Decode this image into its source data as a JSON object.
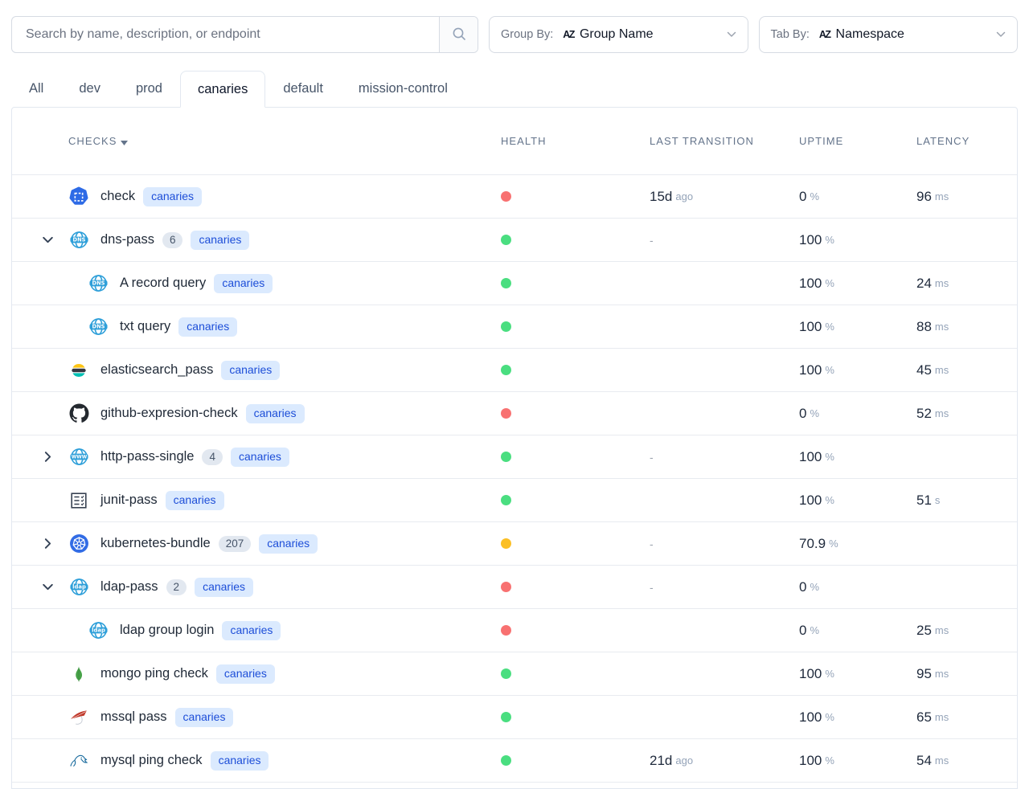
{
  "toolbar": {
    "search": {
      "placeholder": "Search by name, description, or endpoint"
    },
    "group_by": {
      "label": "Group By:",
      "value": "Group Name"
    },
    "tab_by": {
      "label": "Tab By:",
      "value": "Namespace"
    }
  },
  "tabs": {
    "items": [
      "All",
      "dev",
      "prod",
      "canaries",
      "default",
      "mission-control"
    ],
    "active": "canaries"
  },
  "table": {
    "columns": [
      "CHECKS",
      "HEALTH",
      "LAST TRANSITION",
      "UPTIME",
      "LATENCY"
    ],
    "rows": [
      {
        "name": "check",
        "icon": "check",
        "level": 0,
        "expand": null,
        "count": null,
        "namespace": "canaries",
        "health": "unhealthy",
        "last_transition": {
          "value": "15d",
          "unit": "ago"
        },
        "uptime": {
          "value": "0",
          "unit": "%"
        },
        "latency": {
          "value": "96",
          "unit": "ms"
        }
      },
      {
        "name": "dns-pass",
        "icon": "dns",
        "level": 0,
        "expand": "expanded",
        "count": "6",
        "namespace": "canaries",
        "health": "healthy",
        "last_transition": {
          "value": "-"
        },
        "uptime": {
          "value": "100",
          "unit": "%"
        },
        "latency": null
      },
      {
        "name": "A record query",
        "icon": "dns",
        "level": 1,
        "expand": null,
        "count": null,
        "namespace": "canaries",
        "health": "healthy",
        "last_transition": null,
        "uptime": {
          "value": "100",
          "unit": "%"
        },
        "latency": {
          "value": "24",
          "unit": "ms"
        }
      },
      {
        "name": "txt query",
        "icon": "dns",
        "level": 1,
        "expand": null,
        "count": null,
        "namespace": "canaries",
        "health": "healthy",
        "last_transition": null,
        "uptime": {
          "value": "100",
          "unit": "%"
        },
        "latency": {
          "value": "88",
          "unit": "ms"
        }
      },
      {
        "name": "elasticsearch_pass",
        "icon": "elasticsearch",
        "level": 0,
        "expand": null,
        "count": null,
        "namespace": "canaries",
        "health": "healthy",
        "last_transition": null,
        "uptime": {
          "value": "100",
          "unit": "%"
        },
        "latency": {
          "value": "45",
          "unit": "ms"
        }
      },
      {
        "name": "github-expresion-check",
        "icon": "github",
        "level": 0,
        "expand": null,
        "count": null,
        "namespace": "canaries",
        "health": "unhealthy",
        "last_transition": null,
        "uptime": {
          "value": "0",
          "unit": "%"
        },
        "latency": {
          "value": "52",
          "unit": "ms"
        }
      },
      {
        "name": "http-pass-single",
        "icon": "www",
        "level": 0,
        "expand": "collapsed",
        "count": "4",
        "namespace": "canaries",
        "health": "healthy",
        "last_transition": {
          "value": "-"
        },
        "uptime": {
          "value": "100",
          "unit": "%"
        },
        "latency": null
      },
      {
        "name": "junit-pass",
        "icon": "junit",
        "level": 0,
        "expand": null,
        "count": null,
        "namespace": "canaries",
        "health": "healthy",
        "last_transition": null,
        "uptime": {
          "value": "100",
          "unit": "%"
        },
        "latency": {
          "value": "51",
          "unit": "s"
        }
      },
      {
        "name": "kubernetes-bundle",
        "icon": "kubernetes",
        "level": 0,
        "expand": "collapsed",
        "count": "207",
        "namespace": "canaries",
        "health": "warning",
        "last_transition": {
          "value": "-"
        },
        "uptime": {
          "value": "70.9",
          "unit": "%"
        },
        "latency": null
      },
      {
        "name": "ldap-pass",
        "icon": "ldap",
        "level": 0,
        "expand": "expanded",
        "count": "2",
        "namespace": "canaries",
        "health": "unhealthy",
        "last_transition": {
          "value": "-"
        },
        "uptime": {
          "value": "0",
          "unit": "%"
        },
        "latency": null
      },
      {
        "name": "ldap group login",
        "icon": "ldap",
        "level": 1,
        "expand": null,
        "count": null,
        "namespace": "canaries",
        "health": "unhealthy",
        "last_transition": null,
        "uptime": {
          "value": "0",
          "unit": "%"
        },
        "latency": {
          "value": "25",
          "unit": "ms"
        }
      },
      {
        "name": "mongo ping check",
        "icon": "mongo",
        "level": 0,
        "expand": null,
        "count": null,
        "namespace": "canaries",
        "health": "healthy",
        "last_transition": null,
        "uptime": {
          "value": "100",
          "unit": "%"
        },
        "latency": {
          "value": "95",
          "unit": "ms"
        }
      },
      {
        "name": "mssql pass",
        "icon": "mssql",
        "level": 0,
        "expand": null,
        "count": null,
        "namespace": "canaries",
        "health": "healthy",
        "last_transition": null,
        "uptime": {
          "value": "100",
          "unit": "%"
        },
        "latency": {
          "value": "65",
          "unit": "ms"
        }
      },
      {
        "name": "mysql ping check",
        "icon": "mysql",
        "level": 0,
        "expand": null,
        "count": null,
        "namespace": "canaries",
        "health": "healthy",
        "last_transition": {
          "value": "21d",
          "unit": "ago"
        },
        "uptime": {
          "value": "100",
          "unit": "%"
        },
        "latency": {
          "value": "54",
          "unit": "ms"
        }
      }
    ]
  },
  "colors": {
    "healthy": "#4ade80",
    "unhealthy": "#f87171",
    "warning": "#fbbf24",
    "namespace_badge_bg": "#dbeafe",
    "namespace_badge_text": "#1d4ed8",
    "icon_blue": "#2e9fd9"
  }
}
